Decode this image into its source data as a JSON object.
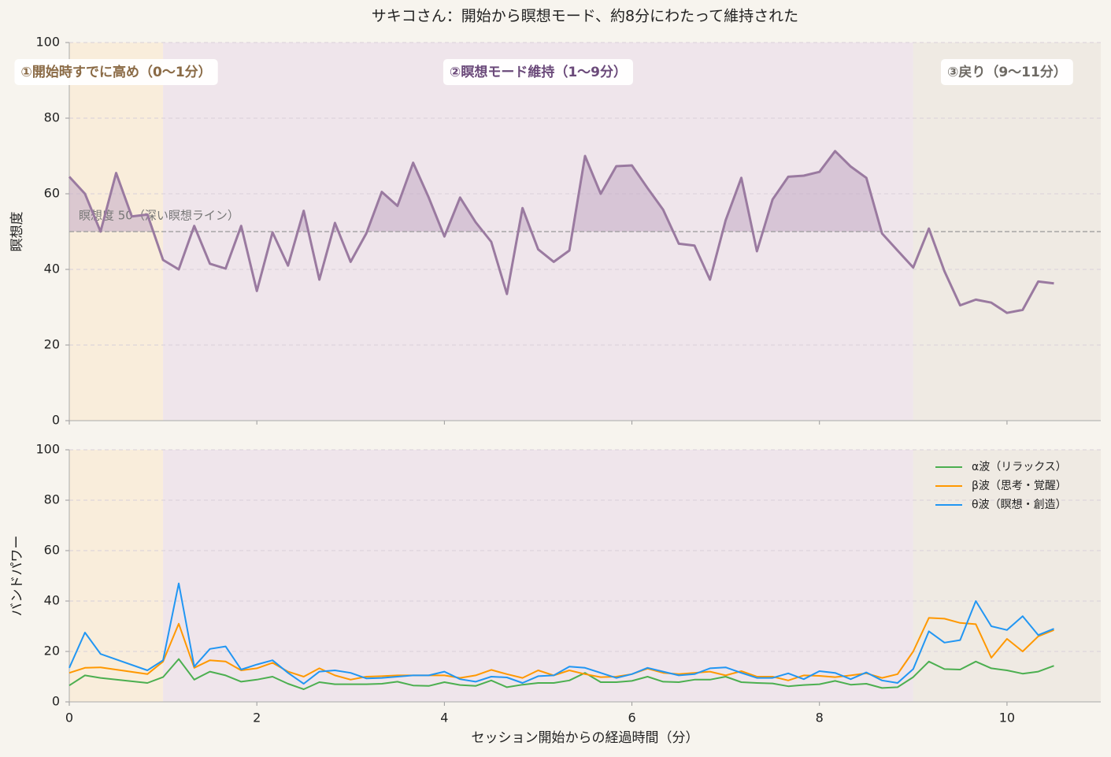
{
  "title": "サキコさん：開始から瞑想モード、約8分にわたって維持された",
  "chart_data": [
    {
      "type": "line",
      "ylabel": "瞑想度",
      "color": "#9a7aa0",
      "fill_color": "#c7afc8",
      "x": [
        0,
        0.167,
        0.333,
        0.5,
        0.667,
        0.833,
        1,
        1.167,
        1.333,
        1.5,
        1.667,
        1.833,
        2,
        2.167,
        2.333,
        2.5,
        2.667,
        2.833,
        3,
        3.167,
        3.333,
        3.5,
        3.667,
        3.833,
        4,
        4.167,
        4.333,
        4.5,
        4.667,
        4.833,
        5,
        5.167,
        5.333,
        5.5,
        5.667,
        5.833,
        6,
        6.167,
        6.333,
        6.5,
        6.667,
        6.833,
        7,
        7.167,
        7.333,
        7.5,
        7.667,
        7.833,
        8,
        8.167,
        8.333,
        8.5,
        8.667,
        8.833,
        9,
        9.167,
        9.333,
        9.5,
        9.667,
        9.833,
        10,
        10.167,
        10.333,
        10.5
      ],
      "values": [
        64.5,
        60,
        50,
        65.5,
        54,
        54.5,
        42.5,
        40,
        51.5,
        41.5,
        40.2,
        51.5,
        34.3,
        49.8,
        41,
        55.5,
        37.3,
        52.3,
        42,
        49.5,
        60.5,
        56.8,
        68.2,
        59,
        48.7,
        59,
        52.5,
        47.3,
        33.5,
        56.2,
        45.3,
        42,
        45,
        70,
        60,
        67.3,
        67.5,
        61.5,
        55.8,
        46.8,
        46.3,
        37.3,
        53,
        64.2,
        44.8,
        58.5,
        64.5,
        64.8,
        65.8,
        71.3,
        67.2,
        64.2,
        49.5,
        45,
        40.5,
        50.8,
        39.5,
        30.5,
        32,
        31.2,
        28.5,
        29.3,
        36.8,
        36.3
      ],
      "threshold": {
        "value": 50,
        "label": "瞑想度 50（深い瞑想ライン）"
      },
      "phases": [
        {
          "start": 0,
          "end": 1,
          "label": "①開始時すでに高め（0〜1分）",
          "color": "#f9eddb",
          "label_color": "#8a6a45"
        },
        {
          "start": 1,
          "end": 9,
          "label": "②瞑想モード維持（1〜9分）",
          "color": "#efe5eb",
          "label_color": "#6b4a7a"
        },
        {
          "start": 9,
          "end": 11,
          "label": "③戻り（9〜11分）",
          "color": "#efeae3",
          "label_color": "#6e6a64"
        }
      ],
      "xlim": [
        0,
        11
      ],
      "xticks": [
        0,
        2,
        4,
        6,
        8,
        10
      ],
      "ylim": [
        0,
        100
      ],
      "yticks": [
        0,
        20,
        40,
        60,
        80,
        100
      ],
      "grid": true
    },
    {
      "type": "line",
      "ylabel": "バンドパワー",
      "xlabel": "セッション開始からの経過時間（分）",
      "legend": "upper right",
      "x": [
        0,
        0.167,
        0.333,
        0.833,
        1,
        1.167,
        1.333,
        1.5,
        1.667,
        1.833,
        2,
        2.167,
        2.333,
        2.5,
        2.667,
        2.833,
        3,
        3.167,
        3.333,
        3.5,
        3.667,
        3.833,
        4,
        4.167,
        4.333,
        4.5,
        4.667,
        4.833,
        5,
        5.167,
        5.333,
        5.5,
        5.667,
        5.833,
        6,
        6.167,
        6.333,
        6.5,
        6.667,
        6.833,
        7,
        7.167,
        7.333,
        7.5,
        7.667,
        7.833,
        8,
        8.167,
        8.333,
        8.5,
        8.667,
        8.833,
        9,
        9.167,
        9.333,
        9.5,
        9.667,
        9.833,
        10,
        10.167,
        10.333,
        10.5
      ],
      "series": [
        {
          "name": "α波（リラックス）",
          "color": "#4caf50",
          "values": [
            6.5,
            10.5,
            9.5,
            7.5,
            9.8,
            17,
            8.8,
            12,
            10.5,
            8,
            8.8,
            10,
            7.2,
            5,
            7.8,
            7,
            7,
            7,
            7.2,
            8,
            6.5,
            6.3,
            7.8,
            6.7,
            6.3,
            8.5,
            5.8,
            6.8,
            7.5,
            7.5,
            8.5,
            11.5,
            7.8,
            7.8,
            8.3,
            10,
            8,
            7.8,
            8.8,
            8.8,
            10,
            7.8,
            7.5,
            7.3,
            6.2,
            6.7,
            7,
            8.3,
            6.8,
            7.2,
            5.5,
            5.8,
            9.8,
            16,
            13,
            12.8,
            16,
            13.3,
            12.5,
            11.2,
            12,
            14.3
          ]
        },
        {
          "name": "β波（思考・覚醒）",
          "color": "#ff9800",
          "values": [
            11.5,
            13.5,
            13.7,
            11,
            16,
            31,
            13.5,
            16.5,
            16,
            12.5,
            13.3,
            15.5,
            12,
            10,
            13.3,
            10.5,
            8.8,
            10,
            10.2,
            10.5,
            10.5,
            10.5,
            10.5,
            9.5,
            10.5,
            12.7,
            11,
            9.5,
            12.5,
            10.5,
            12.5,
            11,
            9.8,
            10,
            11,
            13.2,
            11.5,
            11,
            11.5,
            12,
            10.5,
            12.2,
            10,
            10,
            8.5,
            10.5,
            10.3,
            9.8,
            10.5,
            11.3,
            9.5,
            11,
            20,
            33.3,
            33,
            31.3,
            30.8,
            17.5,
            25,
            20,
            26,
            28.5
          ]
        },
        {
          "name": "θ波（瞑想・創造）",
          "color": "#2196f3",
          "values": [
            13.5,
            27.5,
            19,
            12.5,
            16.5,
            47,
            14,
            21,
            22,
            12.8,
            14.8,
            16.5,
            11.5,
            7.2,
            12,
            12.5,
            11.5,
            9.3,
            9.5,
            10,
            10.5,
            10.5,
            12,
            9,
            8,
            10,
            9.7,
            7.5,
            10.2,
            10.5,
            14,
            13.5,
            11.5,
            9.5,
            11,
            13.5,
            12,
            10.5,
            11,
            13.3,
            13.7,
            11.5,
            9.5,
            9.5,
            11.3,
            9,
            12.2,
            11.5,
            9,
            11.7,
            8.5,
            7.5,
            13,
            28,
            23.5,
            24.5,
            40,
            30,
            28.5,
            34,
            26.5,
            29
          ]
        }
      ],
      "phases": [
        {
          "start": 0,
          "end": 1,
          "color": "#f9eddb"
        },
        {
          "start": 1,
          "end": 9,
          "color": "#efe5eb"
        },
        {
          "start": 9,
          "end": 11,
          "color": "#efeae3"
        }
      ],
      "xlim": [
        0,
        11
      ],
      "xticks": [
        0,
        2,
        4,
        6,
        8,
        10
      ],
      "ylim": [
        0,
        100
      ],
      "yticks": [
        0,
        20,
        40,
        60,
        80,
        100
      ],
      "grid": true
    }
  ]
}
